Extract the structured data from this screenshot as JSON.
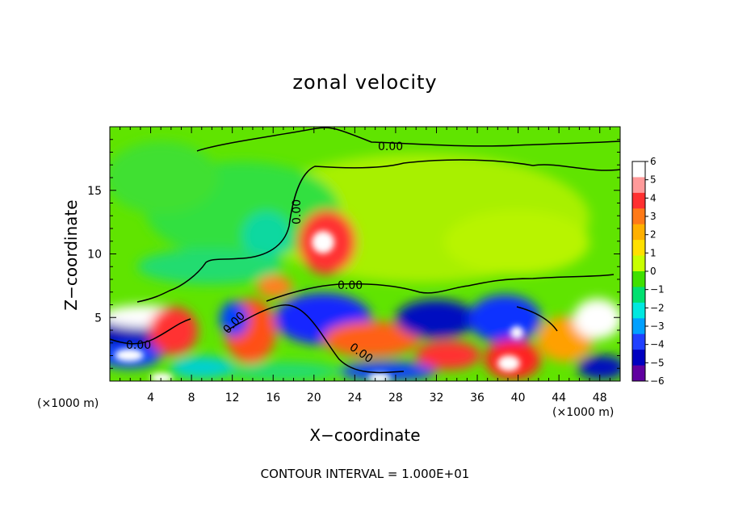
{
  "chart_data": {
    "type": "heatmap",
    "title": "zonal velocity",
    "xlabel": "X−coordinate",
    "ylabel": "Z−coordinate",
    "x_multiplier_label": "(×1000 m)",
    "x_ticks": [
      4,
      8,
      12,
      16,
      20,
      24,
      28,
      32,
      36,
      40,
      44,
      48
    ],
    "y_ticks": [
      5,
      10,
      15
    ],
    "xlim": [
      0,
      50
    ],
    "ylim": [
      0,
      20
    ],
    "colorbar": {
      "ticks": [
        "6",
        "5",
        "4",
        "3",
        "2",
        "1",
        "0",
        "−1",
        "−2",
        "−3",
        "−4",
        "−5",
        "−6"
      ],
      "range": [
        -6,
        6
      ],
      "colors": [
        "#ffffff",
        "#ff9a9a",
        "#ff3030",
        "#ff7a18",
        "#ffb000",
        "#ffe000",
        "#c8ff00",
        "#40e000",
        "#00e070",
        "#00e8e0",
        "#00a0ff",
        "#2040ff",
        "#0000c0",
        "#6000a0"
      ]
    },
    "contour_labels": [
      "0.00",
      "0.00",
      "0.00",
      "0.00",
      "0.00",
      "0.00"
    ],
    "footer": "CONTOUR INTERVAL = 1.000E+01"
  }
}
